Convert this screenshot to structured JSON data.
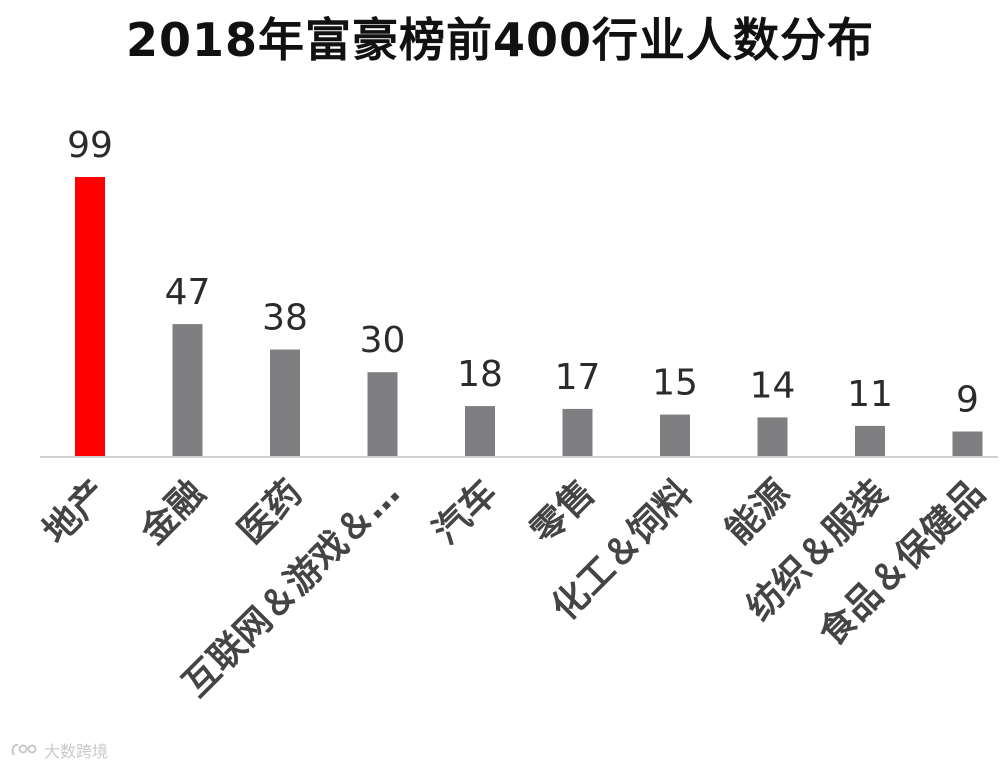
{
  "chart_data": {
    "type": "bar",
    "title": "2018年富豪榜前400行业人数分布",
    "categories": [
      "地产",
      "金融",
      "医药",
      "互联网＆游戏＆…",
      "汽车",
      "零售",
      "化工＆饲料",
      "能源",
      "纺织＆服装",
      "食品＆保健品"
    ],
    "values": [
      99,
      47,
      38,
      30,
      18,
      17,
      15,
      14,
      11,
      9
    ],
    "xlabel": "",
    "ylabel": "",
    "ylim": [
      0,
      99
    ],
    "grid": false,
    "legend": "none",
    "colors": {
      "highlight": "#ff0000",
      "default": "#7f7e80",
      "axis": "#d0d0d0"
    },
    "highlight_index": 0
  },
  "watermark": {
    "text": "大数跨境"
  }
}
